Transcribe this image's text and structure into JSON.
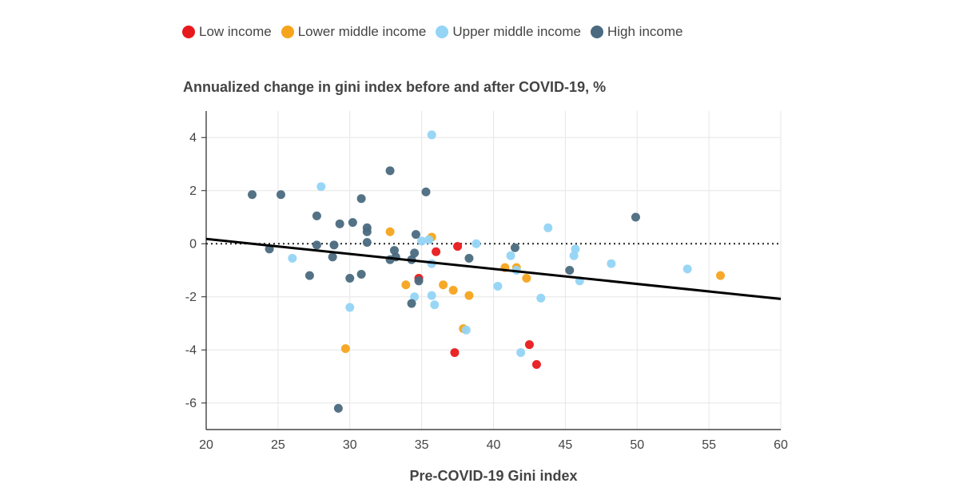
{
  "chart_data": {
    "type": "scatter",
    "title": "Annualized change in gini index before and after COVID-19, %",
    "xlabel": "Pre-COVID-19 Gini index",
    "ylabel": "",
    "xlim": [
      20,
      60
    ],
    "ylim": [
      -7,
      5
    ],
    "xticks": [
      "20",
      "25",
      "30",
      "35",
      "40",
      "45",
      "50",
      "55",
      "60"
    ],
    "yticks": [
      "-6",
      "-4",
      "-2",
      "0",
      "2",
      "4"
    ],
    "grid": true,
    "legend_position": "top-left",
    "zero_line": "dotted",
    "trend_line": {
      "x": [
        20,
        60
      ],
      "y": [
        0.18,
        -2.08
      ]
    },
    "series": [
      {
        "name": "Low income",
        "color": "#e8191c",
        "points": [
          {
            "x": 37.5,
            "y": -0.1
          },
          {
            "x": 36.0,
            "y": -0.3
          },
          {
            "x": 34.8,
            "y": -1.3
          },
          {
            "x": 37.3,
            "y": -4.1
          },
          {
            "x": 42.5,
            "y": -3.8
          },
          {
            "x": 43.0,
            "y": -4.55
          }
        ]
      },
      {
        "name": "Lower middle income",
        "color": "#f5a41c",
        "points": [
          {
            "x": 32.8,
            "y": 0.45
          },
          {
            "x": 35.7,
            "y": 0.25
          },
          {
            "x": 33.9,
            "y": -1.55
          },
          {
            "x": 36.5,
            "y": -1.55
          },
          {
            "x": 37.2,
            "y": -1.75
          },
          {
            "x": 38.3,
            "y": -1.95
          },
          {
            "x": 37.9,
            "y": -3.2
          },
          {
            "x": 29.7,
            "y": -3.95
          },
          {
            "x": 40.8,
            "y": -0.9
          },
          {
            "x": 41.6,
            "y": -0.9
          },
          {
            "x": 42.3,
            "y": -1.3
          },
          {
            "x": 55.8,
            "y": -1.2
          }
        ]
      },
      {
        "name": "Upper middle income",
        "color": "#94d4f5",
        "points": [
          {
            "x": 35.7,
            "y": 4.1
          },
          {
            "x": 28.0,
            "y": 2.15
          },
          {
            "x": 26.0,
            "y": -0.55
          },
          {
            "x": 35.0,
            "y": 0.1
          },
          {
            "x": 35.5,
            "y": 0.15
          },
          {
            "x": 38.8,
            "y": 0.0
          },
          {
            "x": 35.7,
            "y": -0.75
          },
          {
            "x": 34.5,
            "y": -2.0
          },
          {
            "x": 35.7,
            "y": -1.95
          },
          {
            "x": 35.9,
            "y": -2.3
          },
          {
            "x": 30.0,
            "y": -2.4
          },
          {
            "x": 38.1,
            "y": -3.25
          },
          {
            "x": 40.3,
            "y": -1.6
          },
          {
            "x": 41.2,
            "y": -0.45
          },
          {
            "x": 41.6,
            "y": -1.0
          },
          {
            "x": 41.9,
            "y": -4.1
          },
          {
            "x": 43.3,
            "y": -2.05
          },
          {
            "x": 43.8,
            "y": 0.6
          },
          {
            "x": 45.7,
            "y": -0.2
          },
          {
            "x": 45.6,
            "y": -0.45
          },
          {
            "x": 46.0,
            "y": -1.4
          },
          {
            "x": 48.2,
            "y": -0.75
          },
          {
            "x": 53.5,
            "y": -0.95
          }
        ]
      },
      {
        "name": "High income",
        "color": "#4a6a80",
        "points": [
          {
            "x": 23.2,
            "y": 1.85
          },
          {
            "x": 25.2,
            "y": 1.85
          },
          {
            "x": 24.4,
            "y": -0.2
          },
          {
            "x": 27.7,
            "y": 1.05
          },
          {
            "x": 27.7,
            "y": -0.05
          },
          {
            "x": 27.2,
            "y": -1.2
          },
          {
            "x": 28.8,
            "y": -0.5
          },
          {
            "x": 28.9,
            "y": -0.05
          },
          {
            "x": 29.3,
            "y": 0.75
          },
          {
            "x": 29.2,
            "y": -6.2
          },
          {
            "x": 30.0,
            "y": -1.3
          },
          {
            "x": 30.2,
            "y": 0.8
          },
          {
            "x": 30.8,
            "y": 1.7
          },
          {
            "x": 30.8,
            "y": -1.15
          },
          {
            "x": 31.2,
            "y": 0.6
          },
          {
            "x": 31.2,
            "y": 0.45
          },
          {
            "x": 31.2,
            "y": 0.05
          },
          {
            "x": 32.8,
            "y": 2.75
          },
          {
            "x": 32.8,
            "y": -0.6
          },
          {
            "x": 33.1,
            "y": -0.25
          },
          {
            "x": 33.2,
            "y": -0.5
          },
          {
            "x": 34.3,
            "y": -0.6
          },
          {
            "x": 34.5,
            "y": -0.35
          },
          {
            "x": 34.6,
            "y": 0.35
          },
          {
            "x": 34.8,
            "y": -1.4
          },
          {
            "x": 34.3,
            "y": -2.25
          },
          {
            "x": 35.3,
            "y": 1.95
          },
          {
            "x": 38.3,
            "y": -0.55
          },
          {
            "x": 41.5,
            "y": -0.15
          },
          {
            "x": 45.3,
            "y": -1.0
          },
          {
            "x": 49.9,
            "y": 1.0
          }
        ]
      }
    ]
  }
}
